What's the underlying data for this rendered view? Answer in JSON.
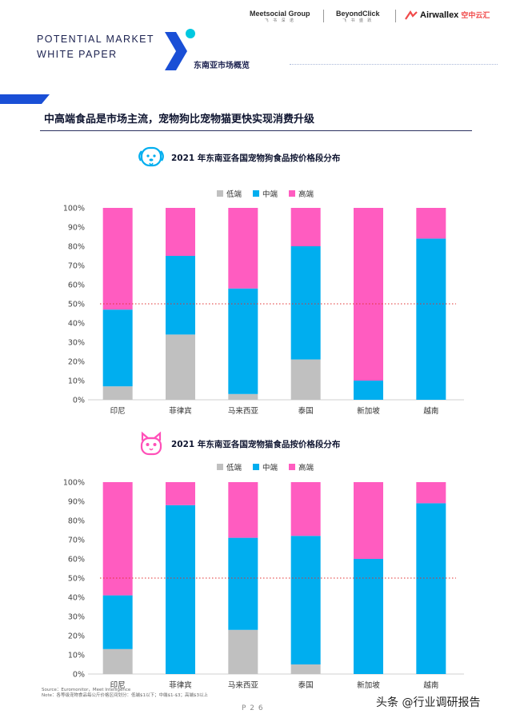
{
  "header": {
    "title_line1": "POTENTIAL MARKET",
    "title_line2": "WHITE PAPER",
    "section": "东南亚市场概览",
    "logo1": "Meetsocial Group",
    "logo1_sub": "飞 书 深 诺",
    "logo2": "BeyondClick",
    "logo2_sub": "飞 书 盛 跃",
    "logo3": "Airwallex",
    "logo3_cn": "空中云汇"
  },
  "main_heading": "中高端食品是市场主流，宠物狗比宠物猫更快实现消费升级",
  "colors": {
    "low": "#c0c0c0",
    "mid": "#00aeef",
    "high": "#ff5cc0",
    "accent": "#1a4fd6",
    "ref": "#e03030"
  },
  "legend": {
    "low": "低端",
    "mid": "中端",
    "high": "高端"
  },
  "chart_data": [
    {
      "type": "bar",
      "stacked": true,
      "title": "2021 年东南亚各国宠物狗食品按价格段分布",
      "icon": "dog-icon",
      "categories": [
        "印尼",
        "菲律宾",
        "马来西亚",
        "泰国",
        "新加坡",
        "越南"
      ],
      "series": [
        {
          "name": "低端",
          "values": [
            7,
            34,
            3,
            21,
            0,
            0
          ]
        },
        {
          "name": "中端",
          "values": [
            40,
            41,
            55,
            59,
            10,
            84
          ]
        },
        {
          "name": "高端",
          "values": [
            53,
            25,
            42,
            20,
            90,
            16
          ]
        }
      ],
      "yticks": [
        "0%",
        "10%",
        "20%",
        "30%",
        "40%",
        "50%",
        "60%",
        "70%",
        "80%",
        "90%",
        "100%"
      ],
      "ylim": [
        0,
        100
      ],
      "reference_line": 50
    },
    {
      "type": "bar",
      "stacked": true,
      "title": "2021 年东南亚各国宠物猫食品按价格段分布",
      "icon": "cat-icon",
      "categories": [
        "印尼",
        "菲律宾",
        "马来西亚",
        "泰国",
        "新加坡",
        "越南"
      ],
      "series": [
        {
          "name": "低端",
          "values": [
            13,
            0,
            23,
            5,
            0,
            0
          ]
        },
        {
          "name": "中端",
          "values": [
            28,
            88,
            48,
            67,
            60,
            89
          ]
        },
        {
          "name": "高端",
          "values": [
            59,
            12,
            29,
            28,
            40,
            11
          ]
        }
      ],
      "yticks": [
        "0%",
        "10%",
        "20%",
        "30%",
        "40%",
        "50%",
        "60%",
        "70%",
        "80%",
        "90%",
        "100%"
      ],
      "ylim": [
        0,
        100
      ],
      "reference_line": 50
    }
  ],
  "source_line1": "Source：Euromonitor，Meet Intelligence",
  "source_line2": "Note：各等级宠物食品每公斤价格区间划分：低端$1以下；中端$1-$3；高端$3以上",
  "page_number": "P 2 6",
  "watermark": "头条 @行业调研报告"
}
